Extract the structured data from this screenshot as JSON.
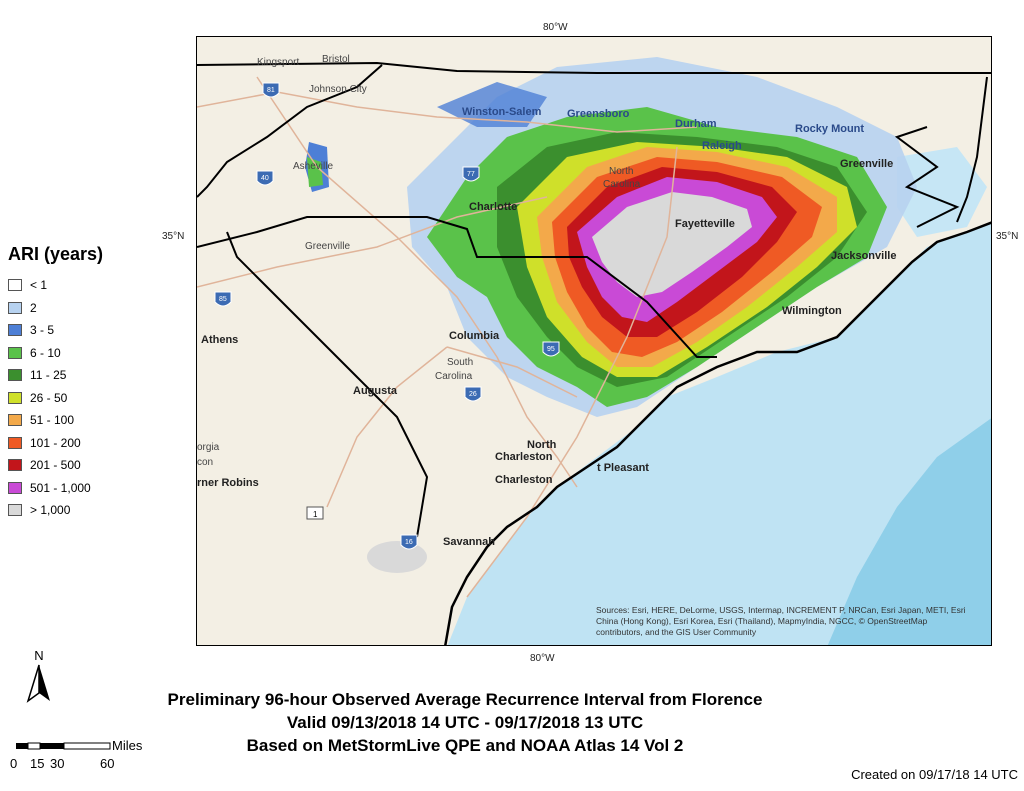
{
  "graticule": {
    "lon_label": "80°W",
    "lat_label": "35°N"
  },
  "legend": {
    "title": "ARI (years)",
    "items": [
      {
        "label": "< 1",
        "color": "#ffffff"
      },
      {
        "label": "2",
        "color": "#b7d2f0"
      },
      {
        "label": "3 - 5",
        "color": "#4d7fd6"
      },
      {
        "label": "6 - 10",
        "color": "#5ac24a"
      },
      {
        "label": "11 - 25",
        "color": "#3b8f2e"
      },
      {
        "label": "26 - 50",
        "color": "#cfe02a"
      },
      {
        "label": "51 - 100",
        "color": "#f3a94a"
      },
      {
        "label": "101 - 200",
        "color": "#ef5a24"
      },
      {
        "label": "201 - 500",
        "color": "#c2151b"
      },
      {
        "label": "501 - 1,000",
        "color": "#c94ad6"
      },
      {
        "label": "> 1,000",
        "color": "#d9d9d9"
      }
    ]
  },
  "places": {
    "kingsport": "Kingsport",
    "bristol": "Bristol",
    "johnson_city": "Johnson City",
    "winston_salem": "Winston-Salem",
    "greensboro": "Greensboro",
    "durham": "Durham",
    "raleigh": "Raleigh",
    "rocky_mount": "Rocky Mount",
    "asheville": "Asheville",
    "greenville_nc": "Greenville",
    "north_carolina_1": "North",
    "north_carolina_2": "Carolina",
    "charlotte": "Charlotte",
    "fayetteville": "Fayetteville",
    "greenville_sc": "Greenville",
    "jacksonville": "Jacksonville",
    "wilmington": "Wilmington",
    "columbia": "Columbia",
    "south_carolina_1": "South",
    "south_carolina_2": "Carolina",
    "athens": "Athens",
    "augusta": "Augusta",
    "georgia": "orgia",
    "macon": "con",
    "warner_robins": "rner Robins",
    "north_charleston_1": "North",
    "north_charleston_2": "Charleston",
    "charleston": "Charleston",
    "mt_pleasant": "t Pleasant",
    "savannah": "Savannah",
    "i81": "81",
    "i40": "40",
    "i77": "77",
    "i85": "85",
    "i26": "26",
    "i95": "95",
    "i16": "16",
    "us1": "1"
  },
  "sources_text": "Sources: Esri, HERE, DeLorme, USGS, Intermap, INCREMENT P, NRCan, Esri Japan, METI, Esri China (Hong Kong), Esri Korea, Esri (Thailand), MapmyIndia, NGCC, © OpenStreetMap contributors, and the GIS User Community",
  "scalebar": {
    "unit": "Miles",
    "ticks": [
      "0",
      "15",
      "30",
      "60"
    ]
  },
  "north_label": "N",
  "title_lines": [
    "Preliminary 96-hour Observed Average Recurrence Interval from Florence",
    "Valid 09/13/2018 14 UTC - 09/17/2018 13 UTC",
    "Based on MetStormLive QPE and NOAA Atlas 14 Vol 2"
  ],
  "created": "Created on 09/17/18 14 UTC"
}
